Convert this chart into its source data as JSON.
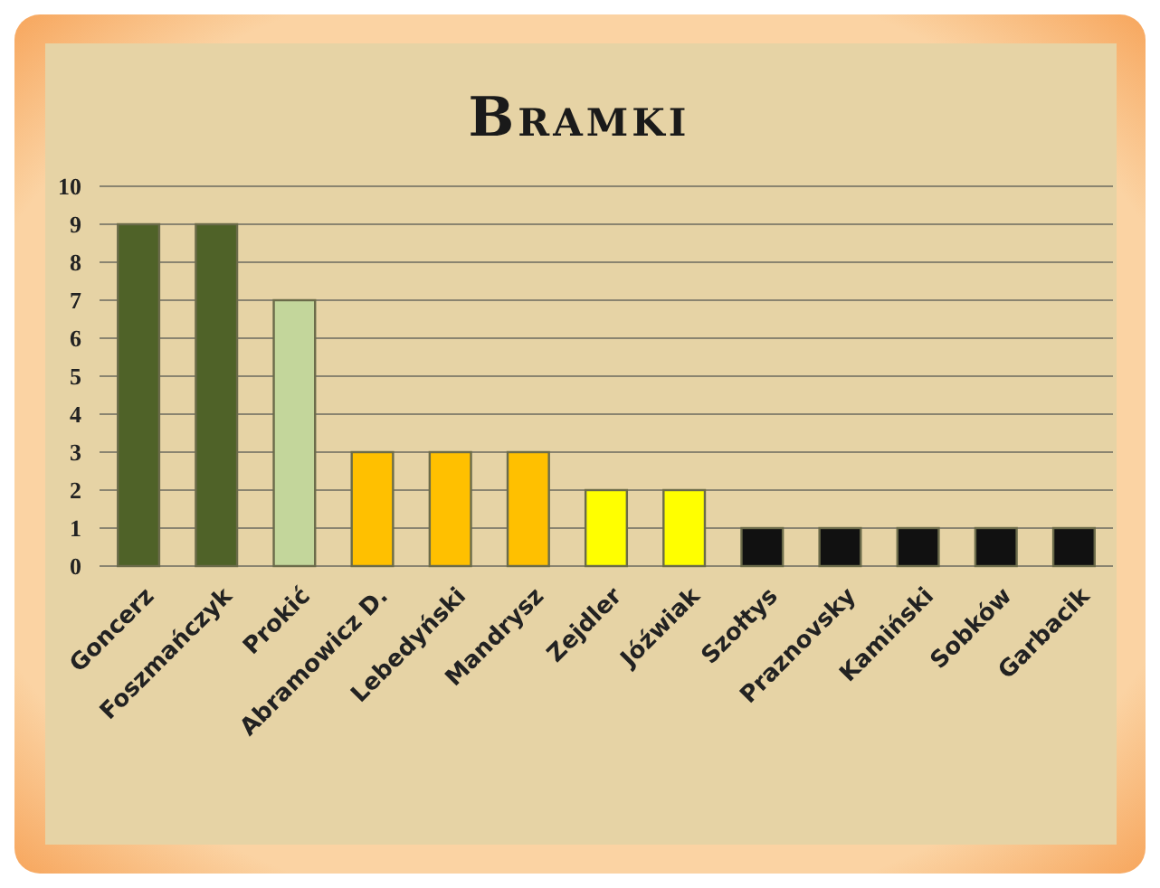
{
  "chart_data": {
    "type": "bar",
    "title": "Bramki",
    "categories": [
      "Goncerz",
      "Foszmańczyk",
      "Prokić",
      "Abramowicz D.",
      "Lebedyński",
      "Mandrysz",
      "Zejdler",
      "Jóźwiak",
      "Szołtys",
      "Praznovsky",
      "Kamiński",
      "Sobków",
      "Garbacik"
    ],
    "values": [
      9,
      9,
      7,
      3,
      3,
      3,
      2,
      2,
      1,
      1,
      1,
      1,
      1
    ],
    "colors": [
      "#4f6228",
      "#4f6228",
      "#c3d69b",
      "#ffc000",
      "#ffc000",
      "#ffc000",
      "#ffff00",
      "#ffff00",
      "#111111",
      "#111111",
      "#111111",
      "#111111",
      "#111111"
    ],
    "ylim": [
      0,
      10
    ],
    "yticks": [
      0,
      1,
      2,
      3,
      4,
      5,
      6,
      7,
      8,
      9,
      10
    ],
    "grid": "y"
  }
}
